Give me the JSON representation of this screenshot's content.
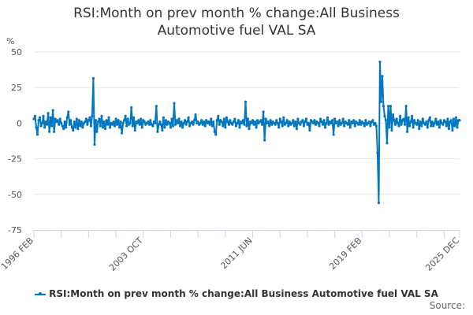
{
  "chart_data": {
    "type": "line",
    "title": "RSI:Month on prev month % change:All Business Automotive fuel VAL SA",
    "title_lines": [
      "RSI:Month on prev month % change:All Business",
      "Automotive fuel VAL SA"
    ],
    "ylabel": "%",
    "ylim": [
      -75,
      50
    ],
    "yticks": [
      "50",
      "25",
      "0",
      "-25",
      "-50",
      "-75"
    ],
    "ytick_values": [
      50,
      25,
      0,
      -25,
      -50,
      -75
    ],
    "x_start": "1996-02",
    "x_end": "2025-12",
    "frequency": "monthly",
    "xtick_labels": [
      "1996 FEB",
      "2003 OCT",
      "2011 JUN",
      "2019 FEB",
      "2025 DEC"
    ],
    "grid": true,
    "legend_position": "bottom",
    "series": [
      {
        "name": "RSI:Month on prev month % change:All Business Automotive fuel VAL SA",
        "color": "#0077c0",
        "values": [
          3,
          5,
          -3,
          -8,
          2,
          4,
          -2,
          0,
          5,
          -3,
          1,
          -1,
          7,
          -6,
          4,
          -2,
          9,
          -6,
          3,
          1,
          2,
          -1,
          3,
          0,
          -2,
          -4,
          1,
          -3,
          4,
          8,
          -1,
          2,
          -3,
          -5,
          1,
          -3,
          3,
          -4,
          2,
          -2,
          1,
          -3,
          0,
          1,
          3,
          -1,
          2,
          4,
          -2,
          5,
          31.5,
          -15,
          2,
          -6,
          1,
          3,
          -2,
          5,
          -3,
          1,
          -4,
          2,
          -1,
          4,
          -3,
          0,
          -1,
          1,
          -2,
          3,
          -1,
          2,
          -3,
          1,
          -7,
          0,
          2,
          5,
          -2,
          3,
          -1,
          0,
          11,
          -2,
          4,
          -5,
          1,
          0,
          2,
          -1,
          3,
          -3,
          2,
          1,
          -1,
          0,
          1,
          -1,
          2,
          -1,
          -2,
          1,
          0,
          12,
          -6,
          -1,
          1,
          -1,
          -5,
          4,
          -3,
          2,
          -1,
          1,
          0,
          -3,
          3,
          -2,
          14,
          -1,
          2,
          0,
          3,
          -2,
          1,
          -3,
          0,
          2,
          -1,
          1,
          4,
          -2,
          0,
          1,
          -1,
          2,
          6,
          0,
          1,
          -1,
          0,
          2,
          -1,
          1,
          -2,
          2,
          0,
          1,
          -1,
          3,
          -2,
          1,
          -6,
          -8,
          2,
          5,
          -1,
          2,
          1,
          -2,
          3,
          -3,
          4,
          1,
          -1,
          2,
          0,
          -1,
          1,
          3,
          -2,
          0,
          2,
          -3,
          1,
          0,
          2,
          -1,
          15,
          -2,
          3,
          -4,
          1,
          0,
          2,
          -1,
          1,
          -3,
          2,
          0,
          1,
          2,
          -1,
          8,
          -12,
          3,
          0,
          1,
          -2,
          2,
          -1,
          1,
          0,
          -1,
          2,
          0,
          -3,
          3,
          1,
          -2,
          4,
          -1,
          0,
          2,
          -2,
          1,
          -1,
          0,
          2,
          -2,
          1,
          -4,
          3,
          0,
          -1,
          1,
          2,
          -2,
          1,
          3,
          -1,
          0,
          -5,
          2,
          1,
          0,
          2,
          -1,
          1,
          0,
          -2,
          3,
          1,
          -1,
          2,
          -3,
          0,
          4,
          -1,
          1,
          0,
          2,
          -8,
          3,
          0,
          1,
          -2,
          2,
          -1,
          0,
          3,
          -2,
          1,
          0,
          -1,
          2,
          -3,
          1,
          0,
          2,
          -2,
          1,
          0,
          -1,
          2,
          -1,
          1,
          0,
          -2,
          2,
          -1,
          0,
          1,
          -2,
          1,
          2,
          -1,
          0,
          -2,
          -21,
          -56,
          43,
          15,
          33,
          12,
          5,
          2,
          -14,
          12,
          -3,
          12,
          -5,
          6,
          2,
          -1,
          3,
          0,
          -2,
          5,
          -1,
          2,
          3,
          -1,
          12,
          -6,
          4,
          -2,
          1,
          5,
          -3,
          2,
          0,
          -1,
          2,
          -4,
          1,
          -2,
          3,
          0,
          -1,
          1,
          -3,
          2,
          4,
          -2,
          1,
          -2,
          0,
          3,
          -1,
          1,
          -3,
          2,
          0,
          -1,
          2,
          1,
          -2,
          3,
          -4,
          1,
          2,
          -5,
          3,
          -2,
          4,
          -3,
          2,
          2
        ]
      }
    ]
  },
  "source_label": "Source:"
}
